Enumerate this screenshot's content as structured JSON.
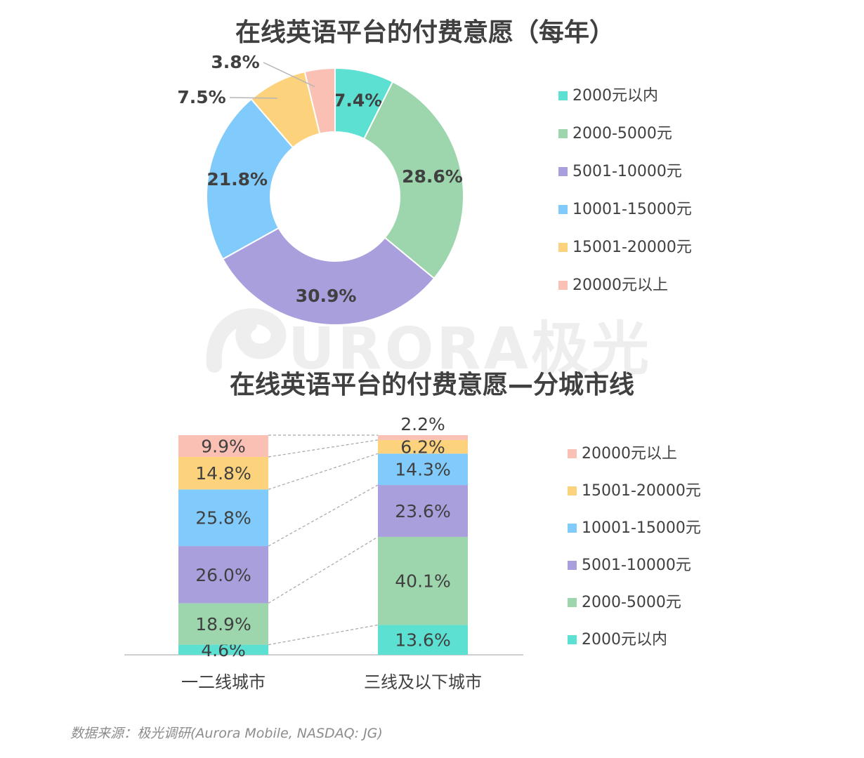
{
  "watermark": {
    "text": "URORA极光"
  },
  "source": "数据来源：极光调研(Aurora Mobile, NASDAQ: JG)",
  "chart_data": [
    {
      "type": "pie",
      "style": "donut",
      "title": "在线英语平台的付费意愿（每年）",
      "labels": [
        "2000元以内",
        "2000-5000元",
        "5001-10000元",
        "10001-15000元",
        "15001-20000元",
        "20000元以上"
      ],
      "values": [
        7.4,
        28.6,
        30.9,
        21.8,
        7.5,
        3.8
      ],
      "value_labels": [
        "7.4%",
        "28.6%",
        "30.9%",
        "21.8%",
        "7.5%",
        "3.8%"
      ],
      "colors": [
        "#5ce0d2",
        "#9dd6ad",
        "#a99fdd",
        "#80cbfb",
        "#fdd27c",
        "#fac0b4"
      ],
      "legend": "right"
    },
    {
      "type": "bar",
      "stacked": true,
      "title": "在线英语平台的付费意愿—分城市线",
      "categories": [
        "一二线城市",
        "三线及以下城市"
      ],
      "series": [
        {
          "name": "2000元以内",
          "values": [
            4.6,
            13.6
          ],
          "labels": [
            "4.6%",
            "13.6%"
          ],
          "color": "#5ce0d2"
        },
        {
          "name": "2000-5000元",
          "values": [
            18.9,
            40.1
          ],
          "labels": [
            "18.9%",
            "40.1%"
          ],
          "color": "#9dd6ad"
        },
        {
          "name": "5001-10000元",
          "values": [
            26.0,
            23.6
          ],
          "labels": [
            "26.0%",
            "23.6%"
          ],
          "color": "#a99fdd"
        },
        {
          "name": "10001-15000元",
          "values": [
            25.8,
            14.3
          ],
          "labels": [
            "25.8%",
            "14.3%"
          ],
          "color": "#80cbfb"
        },
        {
          "name": "15001-20000元",
          "values": [
            14.8,
            6.2
          ],
          "labels": [
            "14.8%",
            "6.2%"
          ],
          "color": "#fdd27c"
        },
        {
          "name": "20000元以上",
          "values": [
            9.9,
            2.2
          ],
          "labels": [
            "9.9%",
            "2.2%"
          ],
          "color": "#fac0b4"
        }
      ],
      "ylim": [
        0,
        100
      ],
      "legend": "right",
      "legend_order": "reversed"
    }
  ]
}
